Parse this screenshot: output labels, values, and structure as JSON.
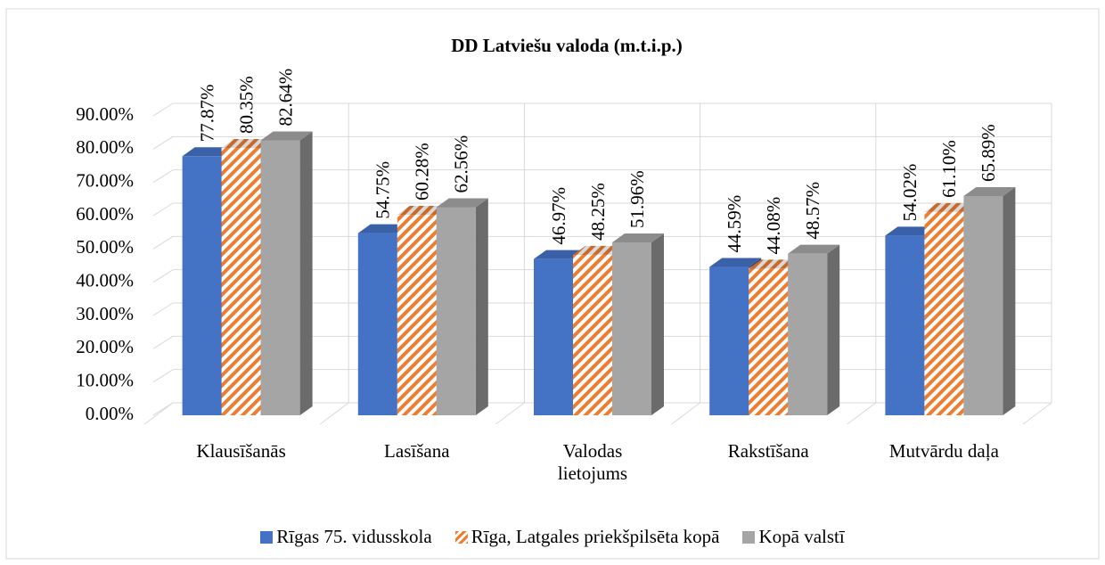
{
  "chart_data": {
    "type": "bar3d",
    "title": "DD Latviešu valoda (m.t.i.p.)",
    "categories": [
      "Klausīšanās",
      "Lasīšana",
      "Valodas lietojums",
      "Rakstīšana",
      "Mutvārdu daļa"
    ],
    "series": [
      {
        "name": "Rīgas 75. vidusskola",
        "color": "#4472c4",
        "values": [
          77.87,
          54.75,
          46.97,
          44.59,
          54.02
        ],
        "value_labels": [
          "77.87%",
          "54.75%",
          "46.97%",
          "44.59%",
          "54.02%"
        ]
      },
      {
        "name": "Rīga, Latgales priekšpilsēta kopā",
        "color": "#ed7d31",
        "pattern": "diagonal-stripes",
        "values": [
          80.35,
          60.28,
          48.25,
          44.08,
          61.1
        ],
        "value_labels": [
          "80.35%",
          "60.28%",
          "48.25%",
          "44.08%",
          "61.10%"
        ]
      },
      {
        "name": "Kopā valstī",
        "color": "#a5a5a5",
        "values": [
          82.64,
          62.56,
          51.96,
          48.57,
          65.89
        ],
        "value_labels": [
          "82.64%",
          "62.56%",
          "51.96%",
          "48.57%",
          "65.89%"
        ]
      }
    ],
    "ylim": [
      0,
      90
    ],
    "yticks": [
      {
        "value": 0,
        "label": "0.00%"
      },
      {
        "value": 10,
        "label": "10.00%"
      },
      {
        "value": 20,
        "label": "20.00%"
      },
      {
        "value": 30,
        "label": "30.00%"
      },
      {
        "value": 40,
        "label": "40.00%"
      },
      {
        "value": 50,
        "label": "50.00%"
      },
      {
        "value": 60,
        "label": "60.00%"
      },
      {
        "value": 70,
        "label": "70.00%"
      },
      {
        "value": 80,
        "label": "80.00%"
      },
      {
        "value": 90,
        "label": "90.00%"
      }
    ],
    "grid": true,
    "legend": "bottom"
  }
}
